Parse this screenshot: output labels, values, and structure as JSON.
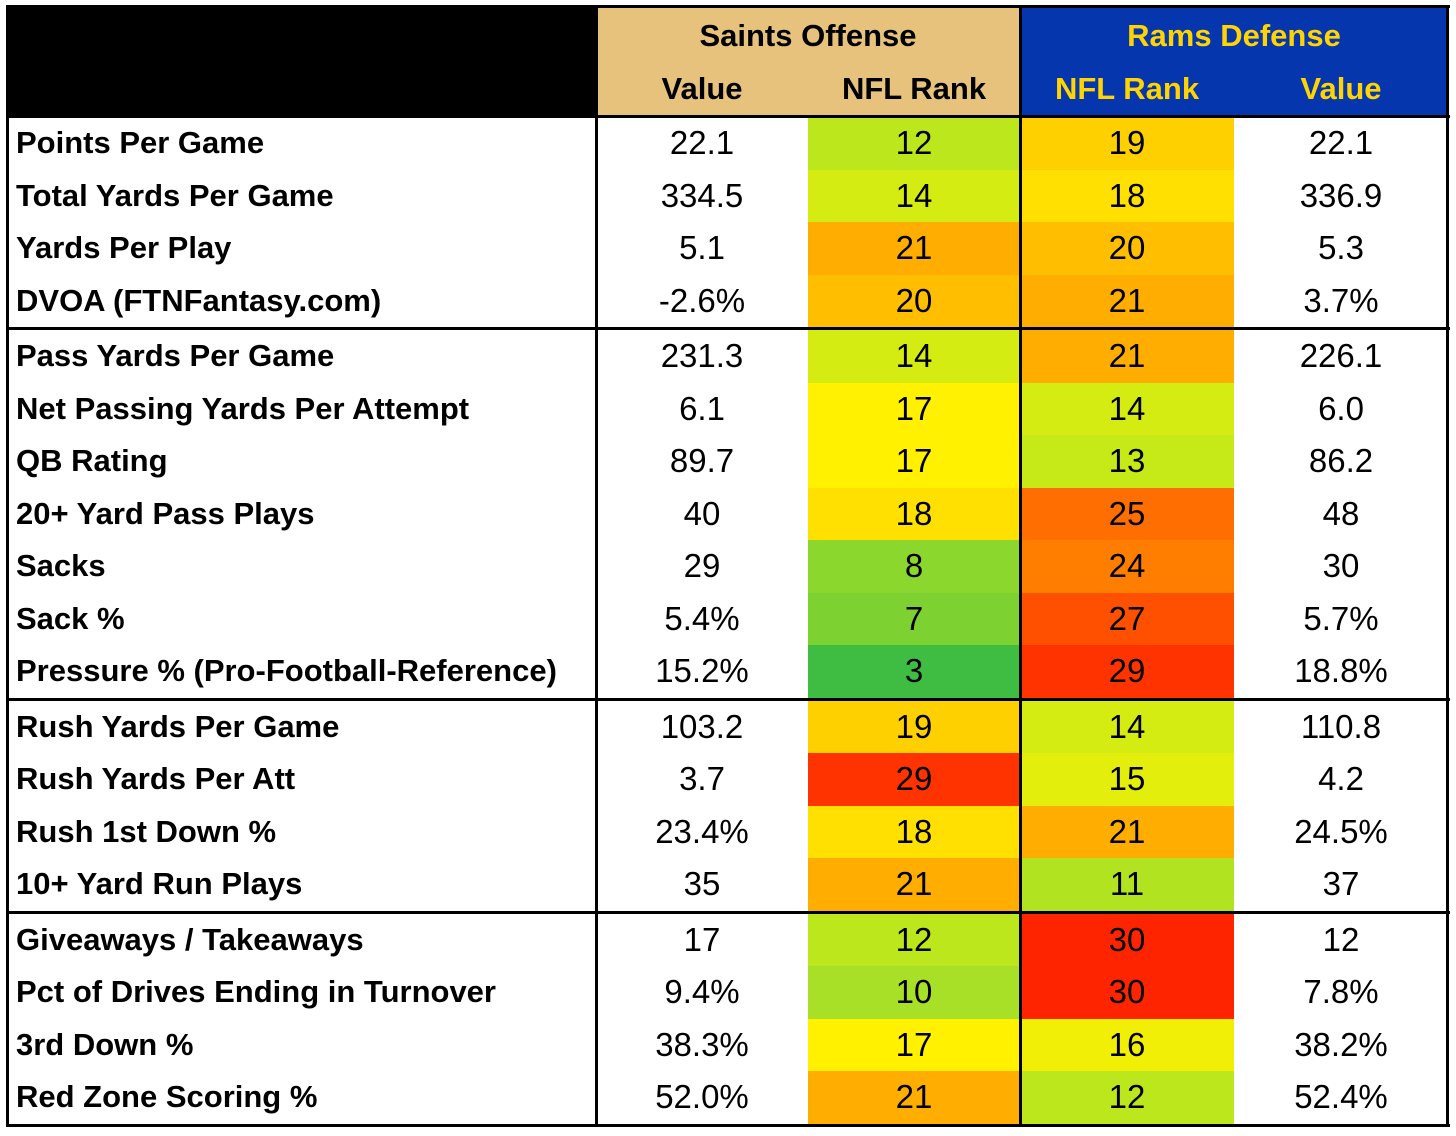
{
  "header": {
    "offense_title": "Saints Offense",
    "offense_value_label": "Value",
    "offense_rank_label": "NFL Rank",
    "defense_title": "Rams Defense",
    "defense_rank_label": "NFL Rank",
    "defense_value_label": "Value"
  },
  "colors": {
    "header_black": "#000000",
    "saints_gold": "#e6c27d",
    "rams_blue": "#0536ad",
    "rams_gold": "#ffd400",
    "rank_scale": [
      "#1fb34a",
      "#c0e81a",
      "#ffff00",
      "#ffb000",
      "#ff2400"
    ]
  },
  "groups": [
    {
      "rows": [
        {
          "label": "Points Per Game",
          "off_value": "22.1",
          "off_rank": "12",
          "def_rank": "19",
          "def_value": "22.1"
        },
        {
          "label": "Total Yards Per Game",
          "off_value": "334.5",
          "off_rank": "14",
          "def_rank": "18",
          "def_value": "336.9"
        },
        {
          "label": "Yards Per Play",
          "off_value": "5.1",
          "off_rank": "21",
          "def_rank": "20",
          "def_value": "5.3"
        },
        {
          "label": "DVOA (FTNFantasy.com)",
          "off_value": "-2.6%",
          "off_rank": "20",
          "def_rank": "21",
          "def_value": "3.7%"
        }
      ]
    },
    {
      "rows": [
        {
          "label": "Pass Yards Per Game",
          "off_value": "231.3",
          "off_rank": "14",
          "def_rank": "21",
          "def_value": "226.1"
        },
        {
          "label": "Net Passing Yards Per Attempt",
          "off_value": "6.1",
          "off_rank": "17",
          "def_rank": "14",
          "def_value": "6.0"
        },
        {
          "label": "QB Rating",
          "off_value": "89.7",
          "off_rank": "17",
          "def_rank": "13",
          "def_value": "86.2"
        },
        {
          "label": "20+ Yard Pass Plays",
          "off_value": "40",
          "off_rank": "18",
          "def_rank": "25",
          "def_value": "48"
        },
        {
          "label": "Sacks",
          "off_value": "29",
          "off_rank": "8",
          "def_rank": "24",
          "def_value": "30"
        },
        {
          "label": "Sack %",
          "off_value": "5.4%",
          "off_rank": "7",
          "def_rank": "27",
          "def_value": "5.7%"
        },
        {
          "label": "Pressure % (Pro-Football-Reference)",
          "off_value": "15.2%",
          "off_rank": "3",
          "def_rank": "29",
          "def_value": "18.8%"
        }
      ]
    },
    {
      "rows": [
        {
          "label": "Rush Yards Per Game",
          "off_value": "103.2",
          "off_rank": "19",
          "def_rank": "14",
          "def_value": "110.8"
        },
        {
          "label": "Rush Yards Per Att",
          "off_value": "3.7",
          "off_rank": "29",
          "def_rank": "15",
          "def_value": "4.2"
        },
        {
          "label": "Rush 1st Down %",
          "off_value": "23.4%",
          "off_rank": "18",
          "def_rank": "21",
          "def_value": "24.5%"
        },
        {
          "label": "10+ Yard Run Plays",
          "off_value": "35",
          "off_rank": "21",
          "def_rank": "11",
          "def_value": "37"
        }
      ]
    },
    {
      "rows": [
        {
          "label": "Giveaways / Takeaways",
          "off_value": "17",
          "off_rank": "12",
          "def_rank": "30",
          "def_value": "12"
        },
        {
          "label": "Pct of Drives Ending in Turnover",
          "off_value": "9.4%",
          "off_rank": "10",
          "def_rank": "30",
          "def_value": "7.8%"
        },
        {
          "label": "3rd Down %",
          "off_value": "38.3%",
          "off_rank": "17",
          "def_rank": "16",
          "def_value": "38.2%"
        },
        {
          "label": "Red Zone Scoring %",
          "off_value": "52.0%",
          "off_rank": "21",
          "def_rank": "12",
          "def_value": "52.4%"
        }
      ]
    }
  ]
}
